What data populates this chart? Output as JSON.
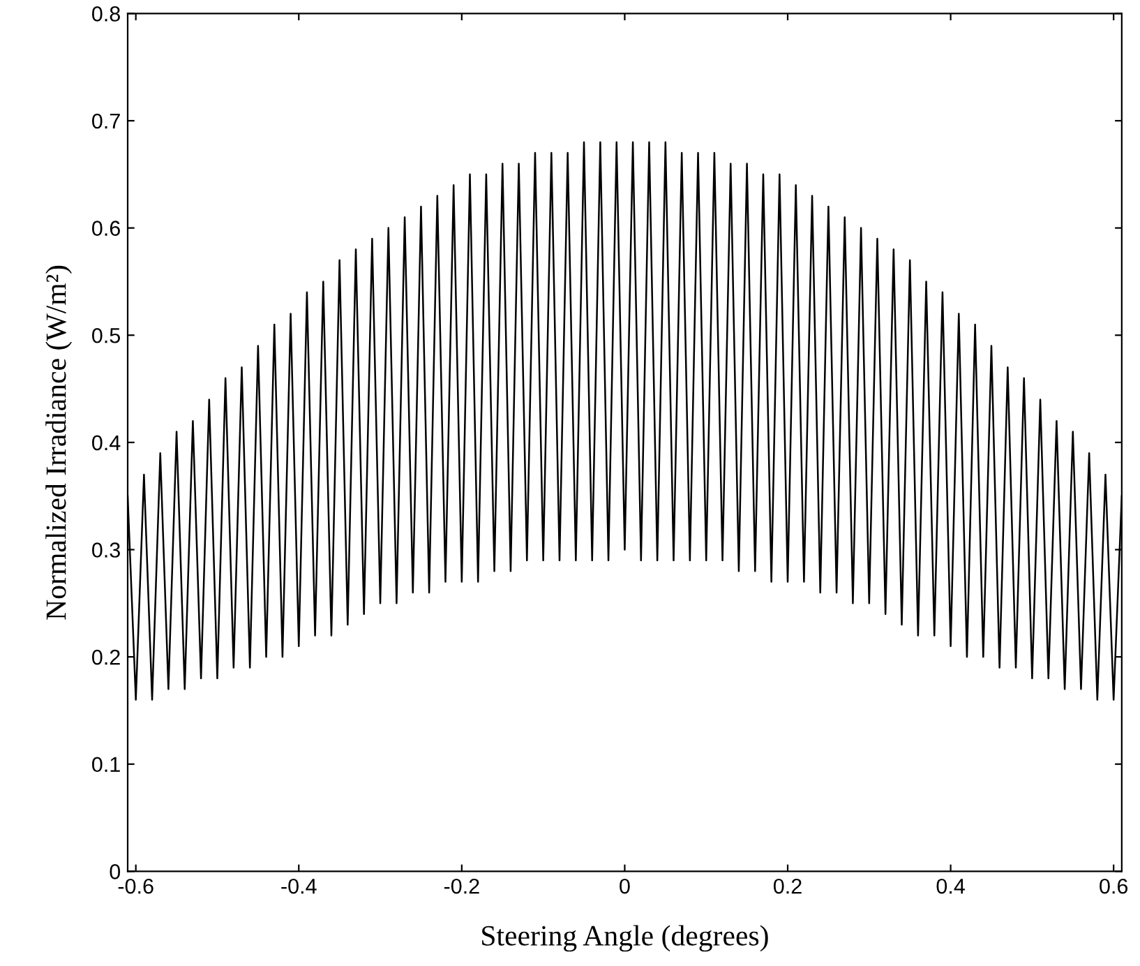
{
  "chart_data": {
    "type": "line",
    "xlabel": "Steering Angle (degrees)",
    "ylabel": "Normalized Irradiance (W/m²)",
    "xlim": [
      -0.61,
      0.61
    ],
    "xticks": [
      -0.6,
      -0.4,
      -0.2,
      0,
      0.2,
      0.4,
      0.6
    ],
    "ylim": [
      0,
      0.8
    ],
    "yticks": [
      0,
      0.1,
      0.2,
      0.3,
      0.4,
      0.5,
      0.6,
      0.7,
      0.8
    ],
    "grid": false,
    "marker": "none",
    "line_style": "solid",
    "series": [
      {
        "color": "#000000",
        "x": [
          -0.61,
          -0.6,
          -0.59,
          -0.58,
          -0.57,
          -0.56,
          -0.55,
          -0.54,
          -0.53,
          -0.52,
          -0.51,
          -0.5,
          -0.49,
          -0.48,
          -0.47,
          -0.46,
          -0.45,
          -0.44,
          -0.43,
          -0.42,
          -0.41,
          -0.4,
          -0.39,
          -0.38,
          -0.37,
          -0.36,
          -0.35,
          -0.34,
          -0.33,
          -0.32,
          -0.31,
          -0.3,
          -0.29,
          -0.28,
          -0.27,
          -0.26,
          -0.25,
          -0.24,
          -0.23,
          -0.22,
          -0.21,
          -0.2,
          -0.19,
          -0.18,
          -0.17,
          -0.16,
          -0.15,
          -0.14,
          -0.13,
          -0.12,
          -0.11,
          -0.1,
          -0.09,
          -0.08,
          -0.07,
          -0.06,
          -0.05,
          -0.04,
          -0.03,
          -0.02,
          -0.01,
          0,
          0.01,
          0.02,
          0.03,
          0.04,
          0.05,
          0.06,
          0.07,
          0.08,
          0.09,
          0.1,
          0.11,
          0.12,
          0.13,
          0.14,
          0.15,
          0.16,
          0.17,
          0.18,
          0.19,
          0.2,
          0.21,
          0.22,
          0.23,
          0.24,
          0.25,
          0.26,
          0.27,
          0.28,
          0.29,
          0.3,
          0.31,
          0.32,
          0.33,
          0.34,
          0.35,
          0.36,
          0.37,
          0.38,
          0.39,
          0.4,
          0.41,
          0.42,
          0.43,
          0.44,
          0.45,
          0.46,
          0.47,
          0.48,
          0.49,
          0.5,
          0.51,
          0.52,
          0.53,
          0.54,
          0.55,
          0.56,
          0.57,
          0.58,
          0.59,
          0.6,
          0.61
        ],
        "values": [
          0.35,
          0.16,
          0.37,
          0.16,
          0.39,
          0.17,
          0.41,
          0.17,
          0.42,
          0.18,
          0.44,
          0.18,
          0.46,
          0.19,
          0.47,
          0.19,
          0.49,
          0.2,
          0.51,
          0.2,
          0.52,
          0.21,
          0.54,
          0.22,
          0.55,
          0.22,
          0.57,
          0.23,
          0.58,
          0.24,
          0.59,
          0.25,
          0.6,
          0.25,
          0.61,
          0.26,
          0.62,
          0.26,
          0.63,
          0.27,
          0.64,
          0.27,
          0.65,
          0.27,
          0.65,
          0.28,
          0.66,
          0.28,
          0.66,
          0.29,
          0.67,
          0.29,
          0.67,
          0.29,
          0.67,
          0.29,
          0.68,
          0.29,
          0.68,
          0.29,
          0.68,
          0.3,
          0.68,
          0.29,
          0.68,
          0.29,
          0.68,
          0.29,
          0.67,
          0.29,
          0.67,
          0.29,
          0.67,
          0.29,
          0.66,
          0.28,
          0.66,
          0.28,
          0.65,
          0.27,
          0.65,
          0.27,
          0.64,
          0.27,
          0.63,
          0.26,
          0.62,
          0.26,
          0.61,
          0.25,
          0.6,
          0.25,
          0.59,
          0.24,
          0.58,
          0.23,
          0.57,
          0.22,
          0.55,
          0.22,
          0.54,
          0.21,
          0.52,
          0.2,
          0.51,
          0.2,
          0.49,
          0.19,
          0.47,
          0.19,
          0.46,
          0.18,
          0.44,
          0.18,
          0.42,
          0.17,
          0.41,
          0.17,
          0.39,
          0.16,
          0.37,
          0.16,
          0.35
        ]
      }
    ]
  }
}
